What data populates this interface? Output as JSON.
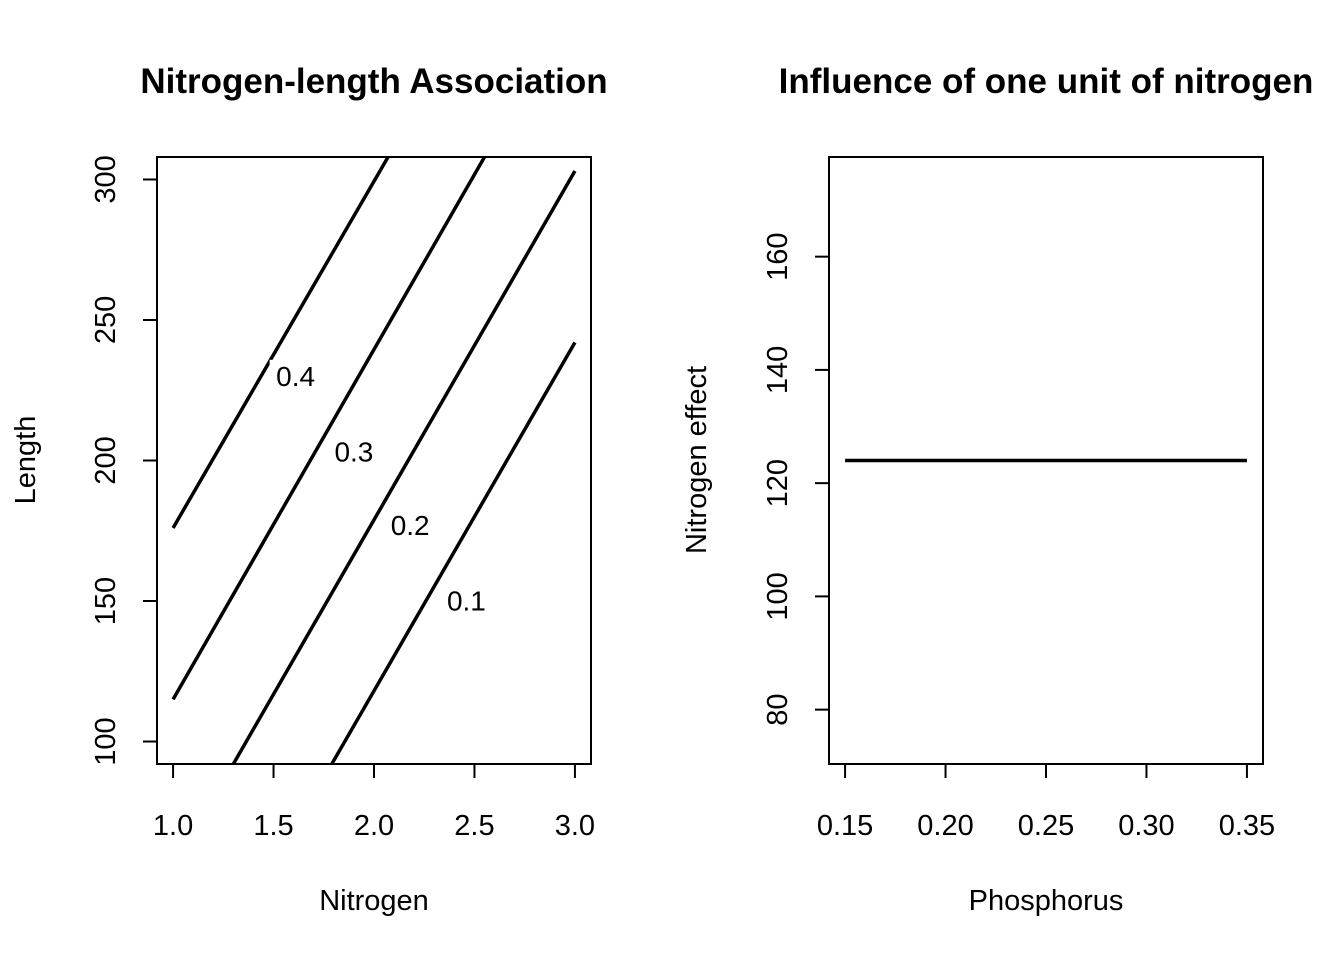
{
  "chart_data": [
    {
      "type": "line",
      "title": "Nitrogen-length Association",
      "xlabel": "Nitrogen",
      "ylabel": "Length",
      "xlim": [
        0.92,
        3.08
      ],
      "ylim": [
        92,
        308
      ],
      "x_ticks": [
        1.0,
        1.5,
        2.0,
        2.5,
        3.0
      ],
      "x_tick_labels": [
        "1.0",
        "1.5",
        "2.0",
        "2.5",
        "3.0"
      ],
      "y_ticks": [
        100,
        150,
        200,
        250,
        300
      ],
      "y_tick_labels": [
        "100",
        "150",
        "200",
        "250",
        "300"
      ],
      "grid": false,
      "contours": [
        {
          "label": "0.4",
          "points": [
            [
              1.0,
              176
            ],
            [
              2.07,
              308
            ]
          ],
          "label_at": [
            1.61,
            228
          ]
        },
        {
          "label": "0.3",
          "points": [
            [
              1.0,
              115
            ],
            [
              2.55,
              308
            ]
          ],
          "label_at": [
            1.9,
            201
          ]
        },
        {
          "label": "0.2",
          "points": [
            [
              1.3,
              92
            ],
            [
              3.0,
              303
            ]
          ],
          "label_at": [
            2.18,
            175
          ]
        },
        {
          "label": "0.1",
          "points": [
            [
              1.79,
              92
            ],
            [
              3.0,
              242
            ]
          ],
          "label_at": [
            2.46,
            148
          ]
        }
      ]
    },
    {
      "type": "line",
      "title": "Influence of one unit of nitrogen",
      "xlabel": "Phosphorus",
      "ylabel": "Nitrogen effect",
      "xlim": [
        0.142,
        0.358
      ],
      "ylim": [
        70.4,
        177.6
      ],
      "x_ticks": [
        0.15,
        0.2,
        0.25,
        0.3,
        0.35
      ],
      "x_tick_labels": [
        "0.15",
        "0.20",
        "0.25",
        "0.30",
        "0.35"
      ],
      "y_ticks": [
        80,
        100,
        120,
        140,
        160
      ],
      "y_tick_labels": [
        "80",
        "100",
        "120",
        "140",
        "160"
      ],
      "grid": false,
      "series": [
        {
          "x": [
            0.15,
            0.35
          ],
          "y": [
            124,
            124
          ]
        }
      ]
    }
  ]
}
